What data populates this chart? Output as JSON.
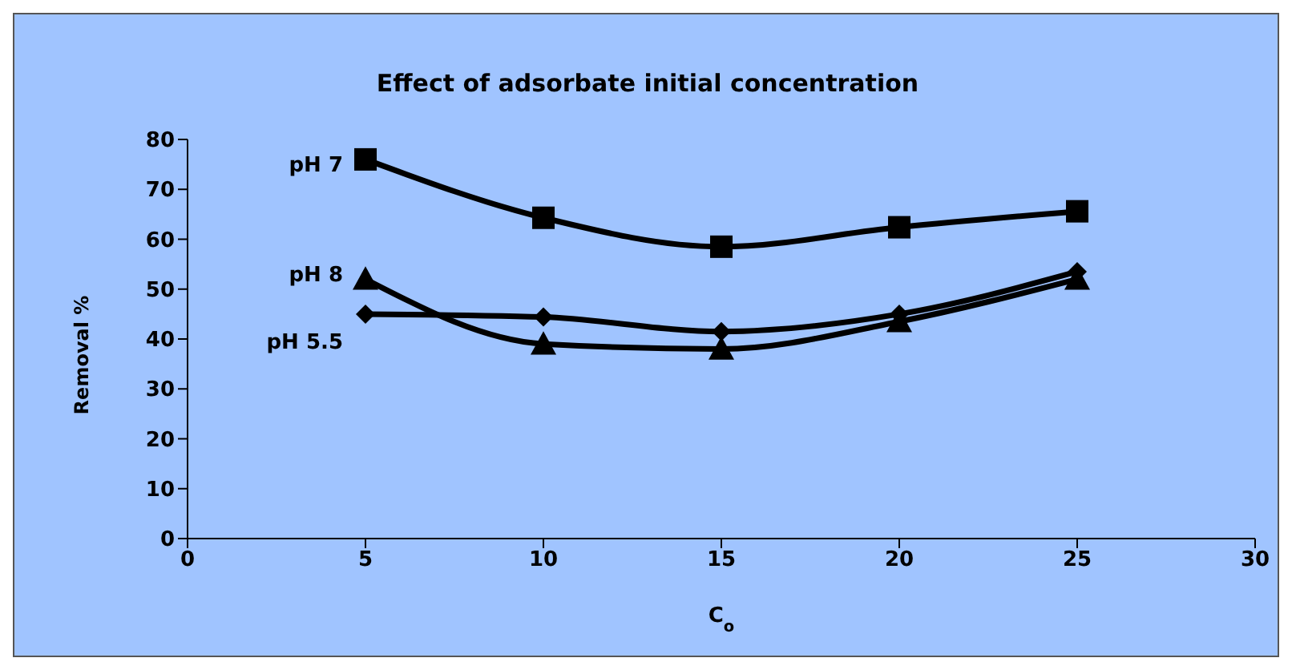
{
  "chart_data": {
    "type": "line",
    "title": "Effect of adsorbate initial concentration",
    "xlabel": "C$_{o}$",
    "ylabel": "Removal %",
    "x": [
      5,
      10,
      15,
      20,
      25
    ],
    "series": [
      {
        "name": "pH 7",
        "color": "#000000",
        "marker": "square",
        "values": [
          76,
          64.3,
          58.5,
          62.4,
          65.6
        ]
      },
      {
        "name": "pH 8",
        "color": "#000000",
        "marker": "triangle",
        "values": [
          52,
          39,
          38,
          43.5,
          52
        ]
      },
      {
        "name": "pH 5.5",
        "color": "#000000",
        "marker": "diamond",
        "values": [
          45,
          44.4,
          41.5,
          45,
          53.5
        ]
      }
    ],
    "xlim": [
      0,
      30
    ],
    "xticks": [
      0,
      5,
      10,
      15,
      20,
      25,
      30
    ],
    "ylim": [
      0,
      80
    ],
    "yticks": [
      0,
      10,
      20,
      30,
      40,
      50,
      60,
      70,
      80
    ],
    "grid": false,
    "legend": false
  }
}
